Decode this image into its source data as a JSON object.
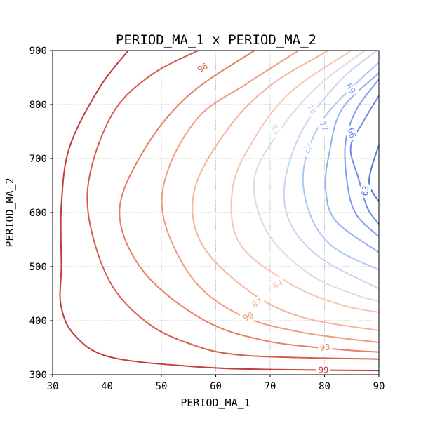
{
  "chart_data": {
    "type": "contour",
    "title": "PERIOD_MA_1 x PERIOD_MA_2",
    "xlabel": "PERIOD_MA_1",
    "ylabel": "PERIOD_MA_2",
    "xlim": [
      30,
      90
    ],
    "ylim": [
      300,
      900
    ],
    "xticks": [
      "30",
      "40",
      "50",
      "60",
      "70",
      "80",
      "90"
    ],
    "yticks": [
      "300",
      "400",
      "500",
      "600",
      "700",
      "800",
      "900"
    ],
    "grid": true,
    "colormap": "coolwarm",
    "levels": [
      {
        "value": 99,
        "color": "#c43c3c",
        "points": [
          [
            43.9,
            900
          ],
          [
            38.5,
            829.4
          ],
          [
            33.1,
            720.7
          ],
          [
            31.6,
            612.8
          ],
          [
            31.6,
            500.0
          ],
          [
            31.5,
            430.0
          ],
          [
            33.9,
            375.0
          ],
          [
            40.5,
            332.8
          ],
          [
            56.8,
            314.4
          ],
          [
            71.4,
            309.4
          ],
          [
            90,
            307.6
          ]
        ],
        "label": {
          "text": "99",
          "x": 79.8,
          "y": 308.5,
          "angle": 0
        }
      },
      {
        "value": 96,
        "color": "#d65e4d",
        "points": [
          [
            56.8,
            900
          ],
          [
            48.5,
            857.3
          ],
          [
            41.5,
            790.9
          ],
          [
            37.1,
            681.8
          ],
          [
            36.7,
            588.5
          ],
          [
            40.5,
            472.3
          ],
          [
            47.1,
            398.4
          ],
          [
            54.9,
            358.4
          ],
          [
            65.3,
            335.7
          ],
          [
            90,
            328.9
          ]
        ],
        "label": {
          "text": "96",
          "x": 57.6,
          "y": 867.8,
          "angle": -30
        }
      },
      {
        "value": 93,
        "color": "#e77f61",
        "points": [
          [
            67.1,
            900
          ],
          [
            54.9,
            816.2
          ],
          [
            46.7,
            713.9
          ],
          [
            42.3,
            600.2
          ],
          [
            46.8,
            489.9
          ],
          [
            57.8,
            401.2
          ],
          [
            69.0,
            363.2
          ],
          [
            82.4,
            347.0
          ],
          [
            90,
            341.9
          ]
        ],
        "label": {
          "text": "93",
          "x": 80.1,
          "y": 350.4,
          "angle": -5
        }
      },
      {
        "value": 90,
        "color": "#f19c7c",
        "points": [
          [
            75.2,
            900
          ],
          [
            65.7,
            838.6
          ],
          [
            57.0,
            778.6
          ],
          [
            51.2,
            678.6
          ],
          [
            50.5,
            586.0
          ],
          [
            56.1,
            473.4
          ],
          [
            64.8,
            409.0
          ],
          [
            76.0,
            378.1
          ],
          [
            90,
            359.8
          ]
        ],
        "label": {
          "text": "90",
          "x": 66.0,
          "y": 407.3,
          "angle": -25
        }
      },
      {
        "value": 87,
        "color": "#f5b59b",
        "points": [
          [
            80.7,
            900
          ],
          [
            70.1,
            835.7
          ],
          [
            62.3,
            755.9
          ],
          [
            56.1,
            642.9
          ],
          [
            57.4,
            542.3
          ],
          [
            66.3,
            453.4
          ],
          [
            76.0,
            406.1
          ],
          [
            90,
            381.7
          ]
        ],
        "label": {
          "text": "87",
          "x": 67.6,
          "y": 432.5,
          "angle": -30
        }
      },
      {
        "value": 84,
        "color": "#f5c6b1",
        "points": [
          [
            84.9,
            900
          ],
          [
            73.6,
            821.7
          ],
          [
            66.9,
            733.9
          ],
          [
            63.1,
            645.1
          ],
          [
            64.4,
            542.6
          ],
          [
            73.9,
            467.2
          ],
          [
            83.1,
            429.2
          ],
          [
            90,
            415.6
          ]
        ],
        "label": {
          "text": "84",
          "x": 71.4,
          "y": 467.4,
          "angle": -30
        }
      },
      {
        "value": 81,
        "color": "#dcdcdc",
        "points": [
          [
            87.4,
            900
          ],
          [
            78.7,
            833.4
          ],
          [
            71.9,
            753.4
          ],
          [
            67.1,
            662.3
          ],
          [
            69.5,
            563.5
          ],
          [
            77.2,
            486.3
          ],
          [
            86.0,
            446.7
          ],
          [
            90,
            436.6
          ]
        ],
        "label": {
          "text": "81",
          "x": 71.0,
          "y": 754.0,
          "angle": 60
        }
      },
      {
        "value": 78,
        "color": "#c6d6ef",
        "points": [
          [
            89.6,
            900
          ],
          [
            82.8,
            843.5
          ],
          [
            76.0,
            754.0
          ],
          [
            72.7,
            655.7
          ],
          [
            73.7,
            580.6
          ],
          [
            79.3,
            515.7
          ],
          [
            90,
            459.4
          ]
        ],
        "label": {
          "text": "78",
          "x": 77.6,
          "y": 791.2,
          "angle": 50
        }
      },
      {
        "value": 75,
        "color": "#aac7f6",
        "points": [
          [
            90,
            878.3
          ],
          [
            80.2,
            779.4
          ],
          [
            76.2,
            684.3
          ],
          [
            77.3,
            598.0
          ],
          [
            81.6,
            536.2
          ],
          [
            90,
            494.2
          ]
        ],
        "label": {
          "text": "75",
          "x": 76.9,
          "y": 718.0,
          "angle": 60
        }
      },
      {
        "value": 72,
        "color": "#92b0f9",
        "points": [
          [
            90,
            858.4
          ],
          [
            83.2,
            791.4
          ],
          [
            80.9,
            711.7
          ],
          [
            80.2,
            644.3
          ],
          [
            82.1,
            584.1
          ],
          [
            90,
            526.4
          ]
        ],
        "label": {
          "text": "72",
          "x": 79.9,
          "y": 759.8,
          "angle": 60
        }
      },
      {
        "value": 69,
        "color": "#7e9ef5",
        "points": [
          [
            90,
            846.5
          ],
          [
            86.0,
            793.1
          ],
          [
            83.9,
            732.4
          ],
          [
            84.1,
            659.8
          ],
          [
            85.7,
            598.7
          ],
          [
            90,
            555.6
          ]
        ],
        "label": {
          "text": "69",
          "x": 84.8,
          "y": 829.9,
          "angle": 60
        }
      },
      {
        "value": 66,
        "color": "#6c8ae9",
        "points": [
          [
            90,
            816.3
          ],
          [
            87.1,
            767.8
          ],
          [
            84.8,
            720.3
          ],
          [
            86.3,
            661.4
          ],
          [
            87.9,
            608.2
          ],
          [
            90,
            578.7
          ]
        ],
        "label": {
          "text": "66",
          "x": 85.0,
          "y": 747.4,
          "angle": 75
        }
      },
      {
        "value": 63,
        "color": "#5b77dd",
        "points": [
          [
            90,
            725.4
          ],
          [
            88.2,
            658.5
          ],
          [
            90,
            620.0
          ]
        ],
        "label": {
          "text": "63",
          "x": 87.5,
          "y": 640.4,
          "angle": -80
        }
      }
    ]
  }
}
